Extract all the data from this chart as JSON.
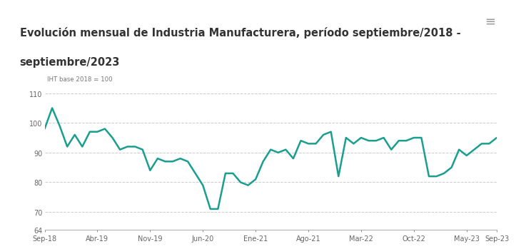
{
  "title_line1": "Evolución mensual de Industria Manufacturera, período septiembre/2018 -",
  "title_line2": "septiembre/2023",
  "ylabel": "IHT base 2018 = 100",
  "line_color": "#1a9e8f",
  "line_width": 1.8,
  "bg_color": "#ffffff",
  "title_bg": "#eeeeee",
  "ylim": [
    64,
    112
  ],
  "yticks": [
    64,
    70,
    80,
    90,
    100,
    110
  ],
  "grid_color": "#cccccc",
  "xtick_labels": [
    "Sep-18",
    "Abr-19",
    "Nov-19",
    "Jun-20",
    "Ene-21",
    "Ago-21",
    "Mar-22",
    "Oct-22",
    "May-23",
    "Sep-23"
  ],
  "xtick_positions": [
    0,
    7,
    14,
    21,
    28,
    35,
    42,
    49,
    56,
    60
  ],
  "values": [
    98,
    105,
    99,
    92,
    96,
    92,
    97,
    97,
    98,
    95,
    91,
    92,
    92,
    91,
    84,
    88,
    87,
    87,
    88,
    87,
    83,
    79,
    71,
    71,
    83,
    83,
    80,
    79,
    81,
    87,
    91,
    90,
    91,
    88,
    94,
    93,
    93,
    96,
    97,
    82,
    95,
    93,
    95,
    94,
    94,
    95,
    91,
    94,
    94,
    95,
    95,
    82,
    82,
    83,
    85,
    91,
    89,
    91,
    93,
    93,
    95
  ]
}
